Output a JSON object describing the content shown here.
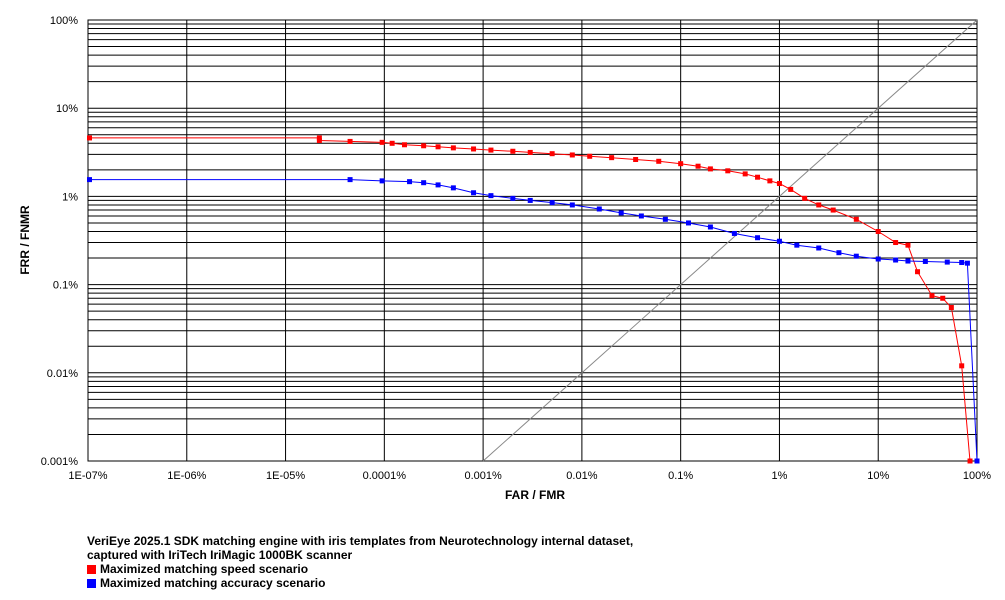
{
  "caption": {
    "line1": "VeriEye 2025.1 SDK matching engine with iris templates from Neurotechnology internal dataset,",
    "line2": "captured with IriTech IriMagic 1000BK scanner"
  },
  "chart_data": {
    "type": "line",
    "title": "",
    "xlabel": "FAR / FMR",
    "ylabel": "FRR / FNMR",
    "xscale": "log",
    "yscale": "log",
    "xlim": [
      1e-07,
      100
    ],
    "ylim": [
      0.001,
      100
    ],
    "grid": true,
    "legend_position": "bottom-left",
    "x_ticks": [
      {
        "value": 1e-07,
        "label": "1E-07%"
      },
      {
        "value": 1e-06,
        "label": "1E-06%"
      },
      {
        "value": 1e-05,
        "label": "1E-05%"
      },
      {
        "value": 0.0001,
        "label": "0.0001%"
      },
      {
        "value": 0.001,
        "label": "0.001%"
      },
      {
        "value": 0.01,
        "label": "0.01%"
      },
      {
        "value": 0.1,
        "label": "0.1%"
      },
      {
        "value": 1,
        "label": "1%"
      },
      {
        "value": 10,
        "label": "10%"
      },
      {
        "value": 100,
        "label": "100%"
      }
    ],
    "y_ticks": [
      {
        "value": 100,
        "label": "100%"
      },
      {
        "value": 10,
        "label": "10%"
      },
      {
        "value": 1,
        "label": "1%"
      },
      {
        "value": 0.1,
        "label": "0.1%"
      },
      {
        "value": 0.01,
        "label": "0.01%"
      },
      {
        "value": 0.001,
        "label": "0.001%"
      }
    ],
    "series": [
      {
        "name": "Maximized matching speed scenario",
        "color": "#ff0000",
        "x": [
          1e-07,
          2.2e-05,
          2.2e-05,
          4.5e-05,
          9.5e-05,
          0.00012,
          0.00016,
          0.00025,
          0.00035,
          0.0005,
          0.0008,
          0.0012,
          0.002,
          0.003,
          0.005,
          0.008,
          0.012,
          0.02,
          0.035,
          0.06,
          0.1,
          0.15,
          0.2,
          0.3,
          0.45,
          0.6,
          0.8,
          1.0,
          1.3,
          1.8,
          2.5,
          3.5,
          6,
          10,
          15,
          20,
          25,
          35,
          45,
          55,
          70,
          85
        ],
        "y": [
          4.6,
          4.6,
          4.3,
          4.2,
          4.1,
          4.0,
          3.85,
          3.75,
          3.65,
          3.55,
          3.45,
          3.35,
          3.25,
          3.15,
          3.05,
          2.95,
          2.85,
          2.75,
          2.62,
          2.5,
          2.35,
          2.2,
          2.05,
          1.95,
          1.8,
          1.65,
          1.5,
          1.4,
          1.2,
          0.95,
          0.8,
          0.7,
          0.55,
          0.4,
          0.3,
          0.28,
          0.14,
          0.075,
          0.07,
          0.055,
          0.012,
          0.001
        ]
      },
      {
        "name": "Maximized matching accuracy scenario",
        "color": "#0000ff",
        "x": [
          1e-07,
          4.5e-05,
          9.5e-05,
          0.00018,
          0.00025,
          0.00035,
          0.0005,
          0.0008,
          0.0012,
          0.002,
          0.003,
          0.005,
          0.008,
          0.015,
          0.025,
          0.04,
          0.07,
          0.12,
          0.2,
          0.35,
          0.6,
          1.0,
          1.5,
          2.5,
          4,
          6,
          10,
          15,
          20,
          30,
          50,
          70,
          80,
          100
        ],
        "y": [
          1.55,
          1.55,
          1.5,
          1.47,
          1.43,
          1.35,
          1.25,
          1.1,
          1.02,
          0.95,
          0.9,
          0.85,
          0.8,
          0.72,
          0.65,
          0.6,
          0.55,
          0.5,
          0.45,
          0.38,
          0.34,
          0.31,
          0.28,
          0.26,
          0.23,
          0.21,
          0.195,
          0.19,
          0.185,
          0.183,
          0.18,
          0.178,
          0.175,
          0.001
        ]
      }
    ]
  }
}
